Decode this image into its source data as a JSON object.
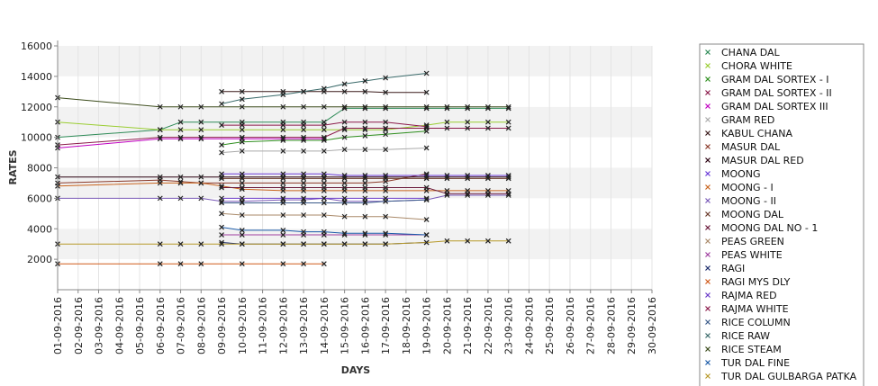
{
  "chart_data": {
    "type": "line",
    "title": "",
    "xlabel": "DAYS",
    "ylabel": "RATES",
    "ylim": [
      0,
      16000
    ],
    "yticks": [
      2000,
      4000,
      6000,
      8000,
      10000,
      12000,
      14000,
      16000
    ],
    "grid": "horizontal alternating bands",
    "legend_position": "right",
    "categories": [
      "01-09-2016",
      "02-09-2016",
      "03-09-2016",
      "04-09-2016",
      "05-09-2016",
      "06-09-2016",
      "07-09-2016",
      "08-09-2016",
      "09-09-2016",
      "10-09-2016",
      "11-09-2016",
      "12-09-2016",
      "13-09-2016",
      "14-09-2016",
      "15-09-2016",
      "16-09-2016",
      "17-09-2016",
      "18-09-2016",
      "19-09-2016",
      "20-09-2016",
      "21-09-2016",
      "22-09-2016",
      "23-09-2016",
      "24-09-2016",
      "25-09-2016",
      "26-09-2016",
      "27-09-2016",
      "28-09-2016",
      "29-09-2016",
      "30-09-2016"
    ],
    "series": [
      {
        "name": "CHANA DAL",
        "color": "#2e8b57",
        "values": [
          10000,
          null,
          null,
          null,
          null,
          10500,
          11000,
          11000,
          null,
          11000,
          null,
          11000,
          11000,
          11000,
          11900,
          11900,
          11900,
          null,
          11900,
          11900,
          11900,
          11900,
          11900,
          null,
          null,
          null,
          null,
          null,
          null,
          null
        ]
      },
      {
        "name": "CHORA WHITE",
        "color": "#9acd32",
        "values": [
          11000,
          null,
          null,
          null,
          null,
          10500,
          10500,
          10500,
          null,
          10500,
          null,
          10500,
          10500,
          10500,
          10500,
          10500,
          10500,
          null,
          10800,
          11000,
          11000,
          11000,
          11000,
          null,
          null,
          null,
          null,
          null,
          null,
          null
        ]
      },
      {
        "name": "GRAM DAL SORTEX  - I",
        "color": "#2f8f1f",
        "values": [
          null,
          null,
          null,
          null,
          null,
          null,
          null,
          null,
          9500,
          9700,
          null,
          9800,
          9800,
          9800,
          10000,
          10100,
          10200,
          null,
          10400,
          null,
          null,
          null,
          null,
          null,
          null,
          null,
          null,
          null,
          null,
          null
        ]
      },
      {
        "name": "GRAM DAL SORTEX - II",
        "color": "#8b1a4a",
        "values": [
          9500,
          null,
          null,
          null,
          null,
          10000,
          10000,
          10000,
          null,
          10000,
          null,
          10000,
          10000,
          10000,
          10600,
          10600,
          10600,
          null,
          10600,
          10600,
          10600,
          10600,
          10600,
          null,
          null,
          null,
          null,
          null,
          null,
          null
        ]
      },
      {
        "name": "GRAM DAL SORTEX III",
        "color": "#c000c0",
        "values": [
          9300,
          null,
          null,
          null,
          null,
          9900,
          9900,
          9900,
          null,
          9900,
          null,
          9900,
          9900,
          9900,
          null,
          null,
          null,
          null,
          null,
          null,
          null,
          null,
          null,
          null,
          null,
          null,
          null,
          null,
          null,
          null
        ]
      },
      {
        "name": "GRAM RED",
        "color": "#aaaaaa",
        "values": [
          null,
          null,
          null,
          null,
          null,
          null,
          null,
          null,
          9000,
          9100,
          null,
          9100,
          9100,
          9100,
          9200,
          9200,
          9200,
          null,
          9300,
          null,
          null,
          null,
          null,
          null,
          null,
          null,
          null,
          null,
          null,
          null
        ]
      },
      {
        "name": "KABUL CHANA",
        "color": "#3a1a1a",
        "values": [
          null,
          null,
          null,
          null,
          null,
          null,
          null,
          null,
          13000,
          13000,
          null,
          13000,
          13000,
          13000,
          13000,
          13000,
          12950,
          null,
          12950,
          null,
          null,
          null,
          null,
          null,
          null,
          null,
          null,
          null,
          null,
          null
        ]
      },
      {
        "name": "MASUR DAL",
        "color": "#8b3a2a",
        "values": [
          7000,
          null,
          null,
          null,
          null,
          7200,
          7100,
          7000,
          null,
          7000,
          null,
          7000,
          7000,
          7000,
          7000,
          7000,
          7100,
          null,
          7600,
          null,
          null,
          null,
          null,
          null,
          null,
          null,
          null,
          null,
          null,
          null
        ]
      },
      {
        "name": "MASUR DAL RED",
        "color": "#2a0010",
        "values": [
          7400,
          null,
          null,
          null,
          null,
          7400,
          7400,
          7400,
          7400,
          7400,
          null,
          7400,
          7400,
          7400,
          7400,
          7400,
          7400,
          null,
          7400,
          7400,
          7400,
          7400,
          7400,
          null,
          null,
          null,
          null,
          null,
          null,
          null
        ]
      },
      {
        "name": "MOONG",
        "color": "#6a3ad8",
        "values": [
          null,
          null,
          null,
          null,
          null,
          null,
          null,
          null,
          7600,
          7600,
          null,
          7600,
          7600,
          7600,
          7500,
          7500,
          7500,
          null,
          7500,
          7500,
          7500,
          7500,
          7500,
          null,
          null,
          null,
          null,
          null,
          null,
          null
        ]
      },
      {
        "name": "MOONG - I",
        "color": "#c8641e",
        "values": [
          6800,
          null,
          null,
          null,
          null,
          7000,
          7000,
          7000,
          6800,
          6600,
          null,
          6500,
          6500,
          6500,
          6500,
          6500,
          6500,
          null,
          6500,
          6500,
          6500,
          6500,
          6500,
          null,
          null,
          null,
          null,
          null,
          null,
          null
        ]
      },
      {
        "name": "MOONG - II",
        "color": "#7a5ab8",
        "values": [
          6000,
          null,
          null,
          null,
          null,
          6000,
          6000,
          6000,
          5800,
          5800,
          null,
          5900,
          5900,
          6000,
          5800,
          5800,
          5800,
          null,
          5900,
          6200,
          6200,
          6200,
          6200,
          null,
          null,
          null,
          null,
          null,
          null,
          null
        ]
      },
      {
        "name": "MOONG DAL",
        "color": "#6a3a2a",
        "values": [
          null,
          null,
          null,
          null,
          null,
          null,
          null,
          null,
          7300,
          7300,
          null,
          7300,
          7300,
          7300,
          7300,
          7300,
          7300,
          null,
          7300,
          7300,
          7300,
          7300,
          7300,
          null,
          null,
          null,
          null,
          null,
          null,
          null
        ]
      },
      {
        "name": "MOONG DAL NO - 1",
        "color": "#6a1a3a",
        "values": [
          null,
          null,
          null,
          null,
          null,
          null,
          null,
          null,
          6700,
          6700,
          null,
          6700,
          6700,
          6700,
          6700,
          6700,
          6700,
          null,
          6700,
          6300,
          6300,
          6300,
          6300,
          null,
          null,
          null,
          null,
          null,
          null,
          null
        ]
      },
      {
        "name": "PEAS GREEN",
        "color": "#aa8a6a",
        "values": [
          null,
          null,
          null,
          null,
          null,
          null,
          null,
          null,
          5000,
          4900,
          null,
          4900,
          4900,
          4900,
          4800,
          4800,
          4800,
          null,
          4600,
          null,
          null,
          null,
          null,
          null,
          null,
          null,
          null,
          null,
          null,
          null
        ]
      },
      {
        "name": "PEAS WHITE",
        "color": "#a040a0",
        "values": [
          null,
          null,
          null,
          null,
          null,
          null,
          null,
          null,
          3600,
          3600,
          null,
          3600,
          3600,
          3600,
          3600,
          3600,
          3600,
          null,
          3600,
          null,
          null,
          null,
          null,
          null,
          null,
          null,
          null,
          null,
          null,
          null
        ]
      },
      {
        "name": "RAGI",
        "color": "#1a2a6a",
        "values": [
          null,
          null,
          null,
          null,
          null,
          null,
          null,
          null,
          3100,
          3000,
          null,
          3000,
          3000,
          3000,
          3000,
          3000,
          3000,
          null,
          3100,
          null,
          null,
          null,
          null,
          null,
          null,
          null,
          null,
          null,
          null,
          null
        ]
      },
      {
        "name": "RAGI MYS DLY",
        "color": "#d05a1a",
        "values": [
          1700,
          null,
          null,
          null,
          null,
          1700,
          1700,
          1700,
          null,
          1700,
          null,
          1700,
          1700,
          1700,
          null,
          null,
          null,
          null,
          null,
          null,
          null,
          null,
          null,
          null,
          null,
          null,
          null,
          null,
          null,
          null
        ]
      },
      {
        "name": "RAJMA RED",
        "color": "#6a3ac8",
        "values": [
          null,
          null,
          null,
          null,
          null,
          null,
          null,
          null,
          6000,
          6000,
          null,
          6000,
          6000,
          6000,
          6000,
          6000,
          6000,
          null,
          6000,
          null,
          null,
          null,
          null,
          null,
          null,
          null,
          null,
          null,
          null,
          null
        ]
      },
      {
        "name": "RAJMA WHITE",
        "color": "#8b1a4a",
        "values": [
          null,
          null,
          null,
          null,
          null,
          null,
          null,
          null,
          10800,
          10800,
          null,
          10800,
          10800,
          10800,
          11000,
          11000,
          11000,
          null,
          10700,
          null,
          null,
          null,
          null,
          null,
          null,
          null,
          null,
          null,
          null,
          null
        ]
      },
      {
        "name": "RICE COLUMN",
        "color": "#3a5a8a",
        "values": [
          null,
          null,
          null,
          null,
          null,
          null,
          null,
          null,
          5700,
          5700,
          null,
          5700,
          5700,
          5700,
          5700,
          5700,
          5800,
          null,
          5900,
          null,
          null,
          null,
          null,
          null,
          null,
          null,
          null,
          null,
          null,
          null
        ]
      },
      {
        "name": "RICE RAW",
        "color": "#3a6a6a",
        "values": [
          null,
          null,
          null,
          null,
          null,
          null,
          null,
          null,
          12200,
          12500,
          null,
          12800,
          13000,
          13200,
          13500,
          13700,
          13900,
          null,
          14200,
          null,
          null,
          null,
          null,
          null,
          null,
          null,
          null,
          null,
          null,
          null
        ]
      },
      {
        "name": "RICE STEAM",
        "color": "#3a4a1a",
        "values": [
          12600,
          null,
          null,
          null,
          null,
          12000,
          12000,
          12000,
          null,
          12000,
          null,
          12000,
          12000,
          12000,
          12000,
          12000,
          12000,
          null,
          12000,
          12000,
          12000,
          12000,
          12000,
          null,
          null,
          null,
          null,
          null,
          null,
          null
        ]
      },
      {
        "name": "TUR DAL FINE",
        "color": "#1a5aa8",
        "values": [
          null,
          null,
          null,
          null,
          null,
          null,
          null,
          null,
          4100,
          3900,
          null,
          3900,
          3800,
          3800,
          3700,
          3700,
          3700,
          null,
          3600,
          null,
          null,
          null,
          null,
          null,
          null,
          null,
          null,
          null,
          null,
          null
        ]
      },
      {
        "name": "TUR DAL GULBARGA PATKA",
        "color": "#b89a2a",
        "values": [
          3000,
          null,
          null,
          null,
          null,
          3000,
          3000,
          3000,
          3000,
          3000,
          null,
          3000,
          3000,
          3000,
          3000,
          3000,
          3000,
          null,
          3100,
          3200,
          3200,
          3200,
          3200,
          null,
          null,
          null,
          null,
          null,
          null,
          null
        ]
      }
    ]
  }
}
